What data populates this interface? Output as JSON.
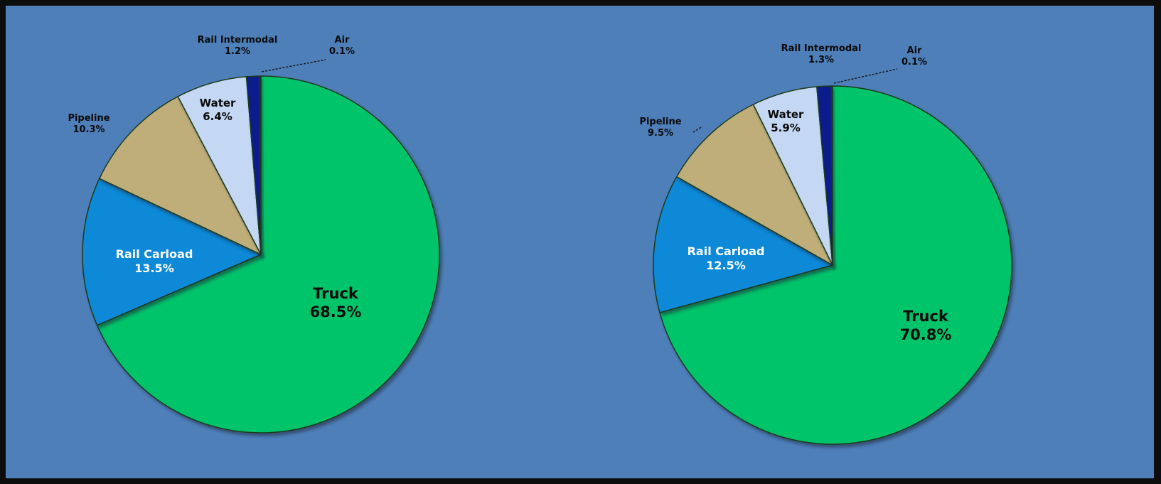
{
  "colors": {
    "background": "#4e7fb9",
    "border": "#0d0d0d",
    "truck": "#00c46a",
    "rail_carload": "#0a89d8",
    "pipeline": "#bfae7a",
    "water": "#c4d8f4",
    "rail_intermodal": "#0d1f8c",
    "air": "#0f1530"
  },
  "chart_data": [
    {
      "type": "pie",
      "title": "",
      "start_angle_deg": 0,
      "slices": [
        {
          "label": "Truck",
          "value": "68.5%",
          "pct": 68.5,
          "color": "#00c46a",
          "text_color": "#0a0a0a"
        },
        {
          "label": "Rail Carload",
          "value": "13.5%",
          "pct": 13.5,
          "color": "#0a89d8",
          "text_color": "#ffffff"
        },
        {
          "label": "Pipeline",
          "value": "10.3%",
          "pct": 10.3,
          "color": "#bfae7a",
          "text_color": "#0a0a0a"
        },
        {
          "label": "Water",
          "value": "6.4%",
          "pct": 6.4,
          "color": "#c4d8f4",
          "text_color": "#0a0a0a"
        },
        {
          "label": "Rail Intermodal",
          "value": "1.2%",
          "pct": 1.2,
          "color": "#0d1f8c",
          "text_color": "#0a0a0a"
        },
        {
          "label": "Air",
          "value": "0.1%",
          "pct": 0.1,
          "color": "#0f1530",
          "text_color": "#0a0a0a"
        }
      ]
    },
    {
      "type": "pie",
      "title": "",
      "start_angle_deg": 0,
      "slices": [
        {
          "label": "Truck",
          "value": "70.8%",
          "pct": 70.8,
          "color": "#00c46a",
          "text_color": "#0a0a0a"
        },
        {
          "label": "Rail Carload",
          "value": "12.5%",
          "pct": 12.5,
          "color": "#0a89d8",
          "text_color": "#ffffff"
        },
        {
          "label": "Pipeline",
          "value": "9.5%",
          "pct": 9.5,
          "color": "#bfae7a",
          "text_color": "#0a0a0a"
        },
        {
          "label": "Water",
          "value": "5.9%",
          "pct": 5.9,
          "color": "#c4d8f4",
          "text_color": "#0a0a0a"
        },
        {
          "label": "Rail Intermodal",
          "value": "1.3%",
          "pct": 1.3,
          "color": "#0d1f8c",
          "text_color": "#0a0a0a"
        },
        {
          "label": "Air",
          "value": "0.1%",
          "pct": 0.1,
          "color": "#0f1530",
          "text_color": "#0a0a0a"
        }
      ]
    }
  ]
}
